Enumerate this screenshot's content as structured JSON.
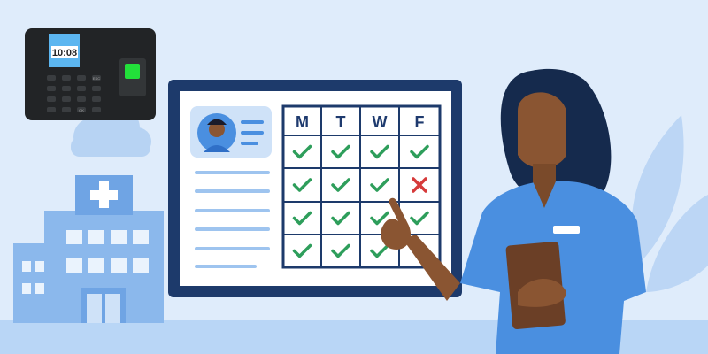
{
  "device": {
    "clock": "10:08",
    "keys": [
      "ESC",
      "OK"
    ],
    "screen_color": "#5cb6f0",
    "sensor_color": "#22e03a"
  },
  "schedule": {
    "days": [
      "M",
      "T",
      "W",
      "F"
    ],
    "rows": [
      [
        "check",
        "check",
        "check",
        "check"
      ],
      [
        "check",
        "check",
        "check",
        "cross"
      ],
      [
        "check",
        "check",
        "check",
        "check"
      ],
      [
        "check",
        "check",
        "check",
        ""
      ]
    ]
  },
  "colors": {
    "frame": "#1d3a6b",
    "check": "#2e9e5b",
    "cross": "#d63a3a",
    "accent": "#4a8fe0",
    "background": "#dfecfb"
  }
}
